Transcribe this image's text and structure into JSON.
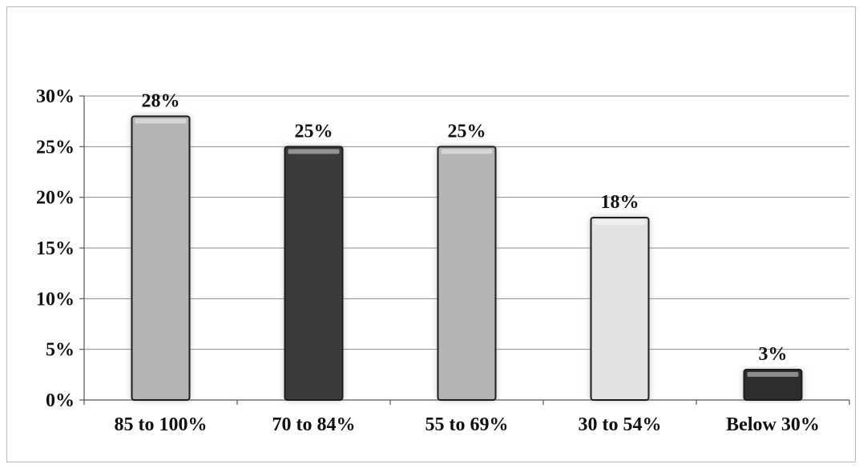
{
  "chart_data": {
    "type": "bar",
    "categories": [
      "85 to 100%",
      "70 to 84%",
      "55 to 69%",
      "30 to 54%",
      "Below 30%"
    ],
    "values": [
      28,
      25,
      25,
      18,
      3
    ],
    "data_labels": [
      "28%",
      "25%",
      "25%",
      "18%",
      "3%"
    ],
    "y_ticks": [
      "0%",
      "5%",
      "10%",
      "15%",
      "20%",
      "25%",
      "30%"
    ],
    "ylim": [
      0,
      30
    ],
    "grid": true,
    "legend": "none",
    "bar_colors": [
      "#b4b4b4",
      "#3a3a3a",
      "#b4b4b4",
      "#e2e2e2",
      "#2e2e2e"
    ]
  }
}
